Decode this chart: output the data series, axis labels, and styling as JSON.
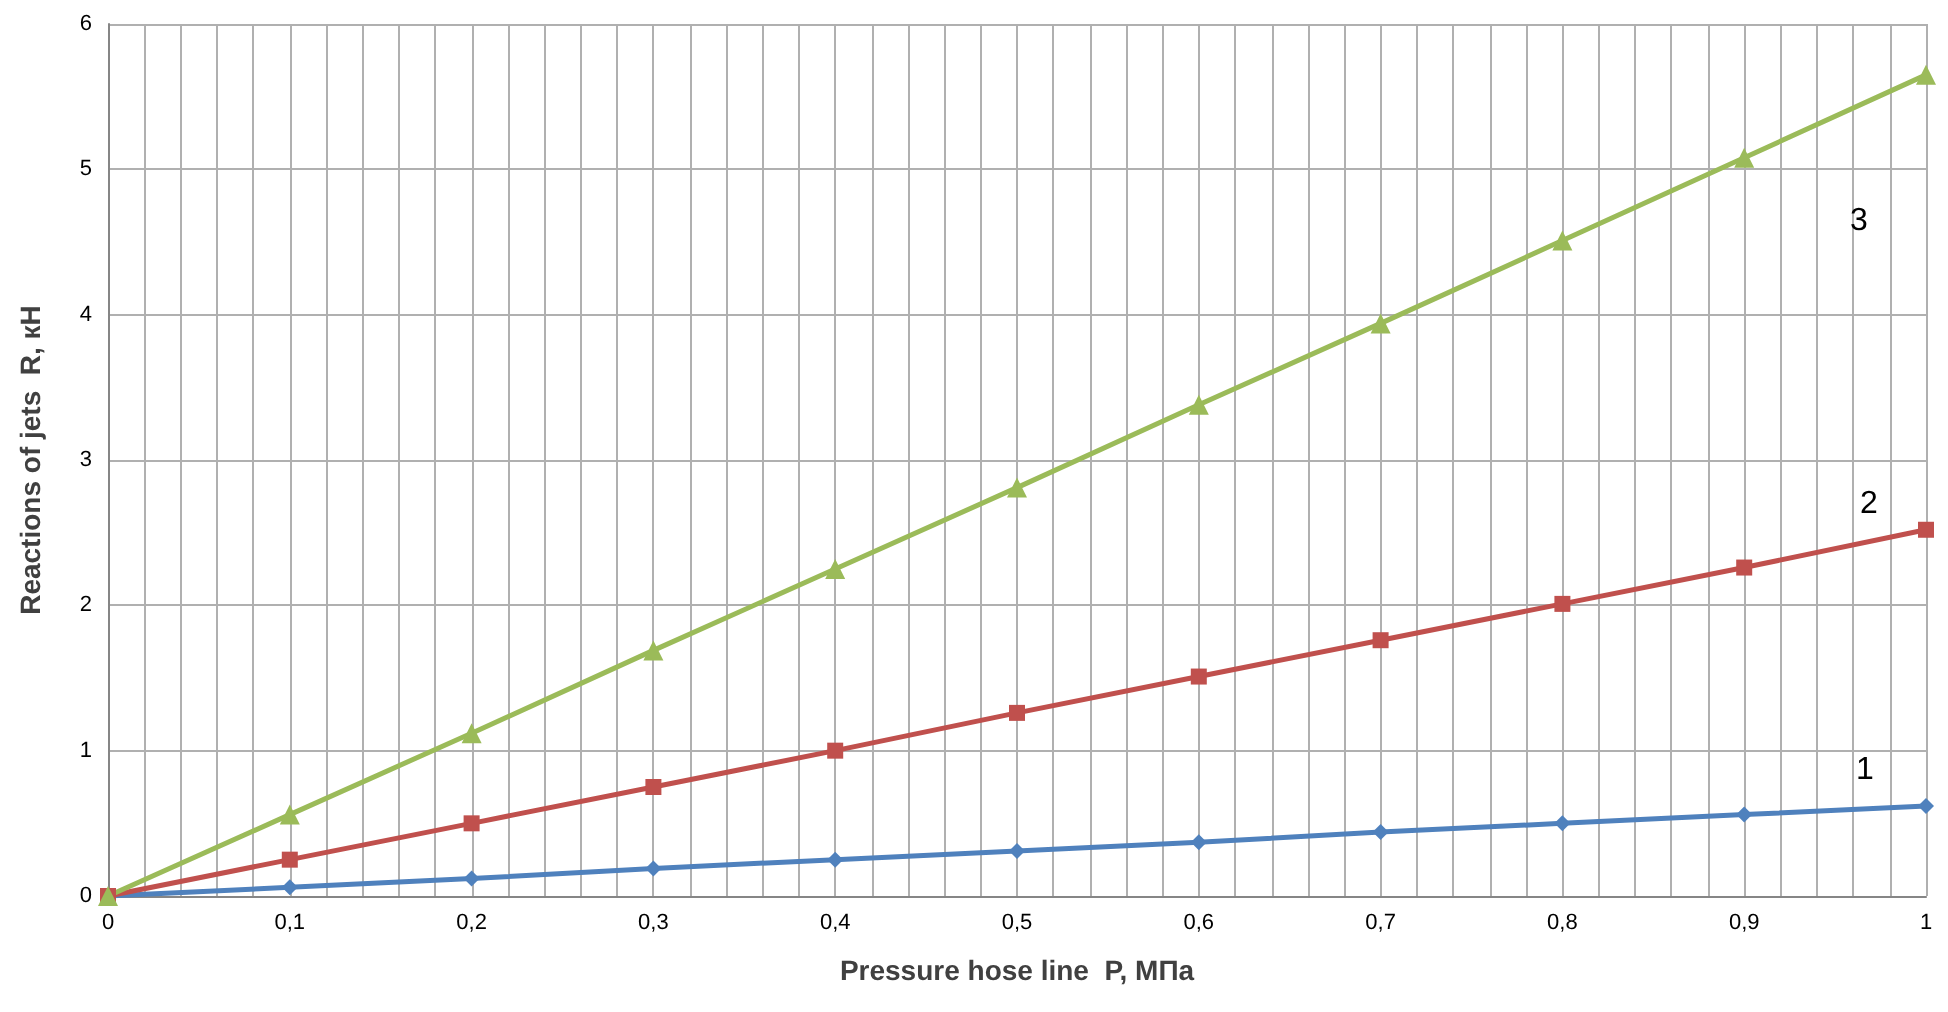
{
  "chart_data": {
    "type": "line",
    "xlabel": "Pressure hose line  P, МПа",
    "ylabel": "Reactions of jets  R, кН",
    "x": [
      0,
      0.1,
      0.2,
      0.3,
      0.4,
      0.5,
      0.6,
      0.7,
      0.8,
      0.9,
      1
    ],
    "series": [
      {
        "name": "1",
        "color": "#4f81bd",
        "marker": "diamond",
        "values": [
          0,
          0.06,
          0.12,
          0.19,
          0.25,
          0.31,
          0.37,
          0.44,
          0.5,
          0.56,
          0.62
        ]
      },
      {
        "name": "2",
        "color": "#c0504d",
        "marker": "square",
        "values": [
          0,
          0.25,
          0.5,
          0.75,
          1.0,
          1.26,
          1.51,
          1.76,
          2.01,
          2.26,
          2.52
        ]
      },
      {
        "name": "3",
        "color": "#9bbb59",
        "marker": "triangle",
        "values": [
          0,
          0.56,
          1.12,
          1.69,
          2.25,
          2.81,
          3.38,
          3.94,
          4.51,
          5.08,
          5.65
        ]
      }
    ],
    "xlim": [
      0,
      1
    ],
    "xticks": [
      0,
      {
        "value": 0.02,
        "label": null
      },
      {
        "value": 0.04,
        "label": null
      },
      {
        "value": 0.06,
        "label": null
      },
      {
        "value": 0.08,
        "label": null
      },
      {
        "value": 0.1,
        "label": "0,1"
      },
      {
        "value": 0.12,
        "label": null
      },
      {
        "value": 0.14,
        "label": null
      },
      {
        "value": 0.16,
        "label": null
      },
      {
        "value": 0.18,
        "label": null
      },
      {
        "value": 0.2,
        "label": "0,2"
      },
      {
        "value": 0.22,
        "label": null
      },
      {
        "value": 0.24,
        "label": null
      },
      {
        "value": 0.26,
        "label": null
      },
      {
        "value": 0.28,
        "label": null
      },
      {
        "value": 0.3,
        "label": "0,3"
      },
      {
        "value": 0.32,
        "label": null
      },
      {
        "value": 0.34,
        "label": null
      },
      {
        "value": 0.36,
        "label": null
      },
      {
        "value": 0.38,
        "label": null
      },
      {
        "value": 0.4,
        "label": "0,4"
      },
      {
        "value": 0.42,
        "label": null
      },
      {
        "value": 0.44,
        "label": null
      },
      {
        "value": 0.46,
        "label": null
      },
      {
        "value": 0.48,
        "label": null
      },
      {
        "value": 0.5,
        "label": "0,5"
      },
      {
        "value": 0.52,
        "label": null
      },
      {
        "value": 0.54,
        "label": null
      },
      {
        "value": 0.56,
        "label": null
      },
      {
        "value": 0.58,
        "label": null
      },
      {
        "value": 0.6,
        "label": "0,6"
      },
      {
        "value": 0.62,
        "label": null
      },
      {
        "value": 0.64,
        "label": null
      },
      {
        "value": 0.66,
        "label": null
      },
      {
        "value": 0.68,
        "label": null
      },
      {
        "value": 0.7,
        "label": "0,7"
      },
      {
        "value": 0.72,
        "label": null
      },
      {
        "value": 0.74,
        "label": null
      },
      {
        "value": 0.76,
        "label": null
      },
      {
        "value": 0.78,
        "label": null
      },
      {
        "value": 0.8,
        "label": "0,8"
      },
      {
        "value": 0.82,
        "label": null
      },
      {
        "value": 0.84,
        "label": null
      },
      {
        "value": 0.86,
        "label": null
      },
      {
        "value": 0.88,
        "label": null
      },
      {
        "value": 0.9,
        "label": "0,9"
      },
      {
        "value": 0.92,
        "label": null
      },
      {
        "value": 0.94,
        "label": null
      },
      {
        "value": 0.96,
        "label": null
      },
      {
        "value": 0.98,
        "label": null
      },
      1
    ],
    "ylim": [
      0,
      6
    ],
    "yticks": [
      0,
      1,
      2,
      3,
      4,
      5,
      6
    ],
    "grid": true,
    "legend": false,
    "line_style": "solid"
  }
}
